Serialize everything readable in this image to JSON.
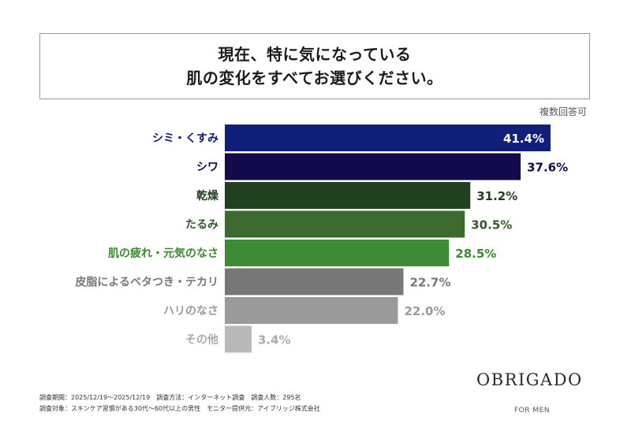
{
  "title_lines": [
    "現在、特に気になっている",
    "肌の変化をすべてお選びください。"
  ],
  "note": "複数回答可",
  "chart_data": {
    "type": "bar",
    "orientation": "horizontal",
    "categories": [
      "シミ・くすみ",
      "シワ",
      "乾燥",
      "たるみ",
      "肌の疲れ・元気のなさ",
      "皮脂によるベタつき・テカリ",
      "ハリのなさ",
      "その他"
    ],
    "values": [
      41.4,
      37.6,
      31.2,
      30.5,
      28.5,
      22.7,
      22.0,
      3.4
    ],
    "value_labels": [
      "41.4%",
      "37.6%",
      "31.2%",
      "30.5%",
      "28.5%",
      "22.7%",
      "22.0%",
      "3.4%"
    ],
    "title": "現在、特に気になっている肌の変化をすべてお選びください。",
    "xlabel": "",
    "ylabel": "",
    "xlim": [
      0,
      41.4
    ],
    "grid": false,
    "colors": [
      "#0f1f7a",
      "#120a4a",
      "#21401f",
      "#3d6b2f",
      "#3f8a36",
      "#777777",
      "#9a9a9a",
      "#b8b8b8"
    ]
  },
  "footer_lines": [
    "調査期間：2025/12/19〜2025/12/19　調査方法：インターネット調査　調査人数：295名",
    "調査対象：スキンケア習慣がある30代〜60代以上の男性　モニター提供元：アイブリッジ株式会社"
  ],
  "logo": {
    "main": "OBRIGADO",
    "sub": "FOR MEN"
  }
}
